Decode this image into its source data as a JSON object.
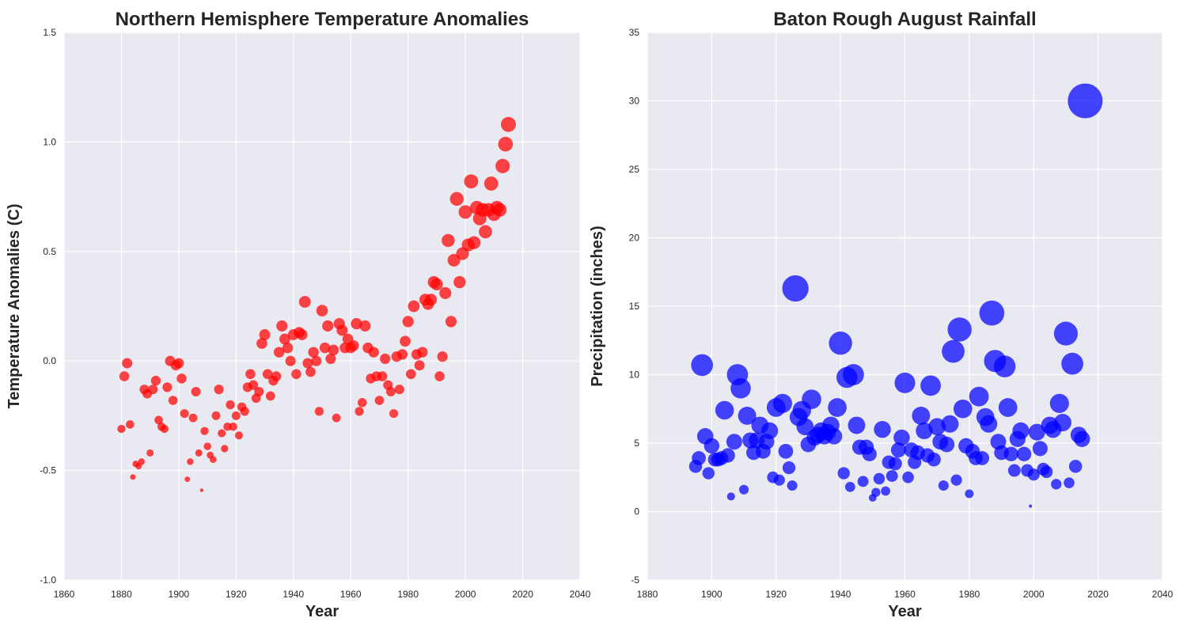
{
  "chart_data": [
    {
      "type": "scatter",
      "title": "Northern Hemisphere Temperature Anomalies",
      "xlabel": "Year",
      "ylabel": "Temperature Anomalies (C)",
      "xlim": [
        1860,
        2040
      ],
      "ylim": [
        -1.0,
        1.5
      ],
      "xticks": [
        "1860",
        "1880",
        "1900",
        "1920",
        "1940",
        "1960",
        "1980",
        "2000",
        "2020",
        "2040"
      ],
      "yticks": [
        "-1.0",
        "-0.5",
        "0.0",
        "0.5",
        "1.0",
        "1.5"
      ],
      "grid": true,
      "marker_color": "#ff0000",
      "marker_size_encodes": "y value",
      "series": [
        {
          "points": [
            [
              1880,
              -0.31
            ],
            [
              1881,
              -0.07
            ],
            [
              1882,
              -0.01
            ],
            [
              1883,
              -0.29
            ],
            [
              1884,
              -0.53
            ],
            [
              1885,
              -0.47
            ],
            [
              1886,
              -0.48
            ],
            [
              1887,
              -0.46
            ],
            [
              1888,
              -0.13
            ],
            [
              1889,
              -0.15
            ],
            [
              1890,
              -0.42
            ],
            [
              1891,
              -0.13
            ],
            [
              1892,
              -0.09
            ],
            [
              1893,
              -0.27
            ],
            [
              1894,
              -0.3
            ],
            [
              1895,
              -0.31
            ],
            [
              1896,
              -0.12
            ],
            [
              1897,
              0.0
            ],
            [
              1898,
              -0.18
            ],
            [
              1899,
              -0.02
            ],
            [
              1900,
              -0.01
            ],
            [
              1901,
              -0.08
            ],
            [
              1902,
              -0.24
            ],
            [
              1903,
              -0.54
            ],
            [
              1904,
              -0.46
            ],
            [
              1905,
              -0.26
            ],
            [
              1906,
              -0.14
            ],
            [
              1907,
              -0.42
            ],
            [
              1908,
              -0.59
            ],
            [
              1909,
              -0.32
            ],
            [
              1910,
              -0.39
            ],
            [
              1911,
              -0.43
            ],
            [
              1912,
              -0.45
            ],
            [
              1913,
              -0.25
            ],
            [
              1914,
              -0.13
            ],
            [
              1915,
              -0.33
            ],
            [
              1916,
              -0.4
            ],
            [
              1917,
              -0.3
            ],
            [
              1918,
              -0.2
            ],
            [
              1919,
              -0.3
            ],
            [
              1920,
              -0.25
            ],
            [
              1921,
              -0.34
            ],
            [
              1922,
              -0.21
            ],
            [
              1923,
              -0.23
            ],
            [
              1924,
              -0.12
            ],
            [
              1925,
              -0.06
            ],
            [
              1926,
              -0.11
            ],
            [
              1927,
              -0.17
            ],
            [
              1928,
              -0.14
            ],
            [
              1929,
              0.08
            ],
            [
              1930,
              0.12
            ],
            [
              1931,
              -0.06
            ],
            [
              1932,
              -0.16
            ],
            [
              1933,
              -0.09
            ],
            [
              1934,
              -0.07
            ],
            [
              1935,
              0.04
            ],
            [
              1936,
              0.16
            ],
            [
              1937,
              0.1
            ],
            [
              1938,
              0.06
            ],
            [
              1939,
              0.0
            ],
            [
              1940,
              0.12
            ],
            [
              1941,
              -0.06
            ],
            [
              1942,
              0.13
            ],
            [
              1943,
              0.12
            ],
            [
              1944,
              0.27
            ],
            [
              1945,
              -0.01
            ],
            [
              1946,
              -0.05
            ],
            [
              1947,
              0.04
            ],
            [
              1948,
              0.0
            ],
            [
              1949,
              -0.23
            ],
            [
              1950,
              0.23
            ],
            [
              1951,
              0.06
            ],
            [
              1952,
              0.16
            ],
            [
              1953,
              0.01
            ],
            [
              1954,
              0.05
            ],
            [
              1955,
              -0.26
            ],
            [
              1956,
              0.17
            ],
            [
              1957,
              0.14
            ],
            [
              1958,
              0.06
            ],
            [
              1959,
              0.1
            ],
            [
              1960,
              0.06
            ],
            [
              1961,
              0.07
            ],
            [
              1962,
              0.17
            ],
            [
              1963,
              -0.23
            ],
            [
              1964,
              -0.19
            ],
            [
              1965,
              0.16
            ],
            [
              1966,
              0.06
            ],
            [
              1967,
              -0.08
            ],
            [
              1968,
              0.04
            ],
            [
              1969,
              -0.07
            ],
            [
              1970,
              -0.18
            ],
            [
              1971,
              -0.07
            ],
            [
              1972,
              0.01
            ],
            [
              1973,
              -0.11
            ],
            [
              1974,
              -0.14
            ],
            [
              1975,
              -0.24
            ],
            [
              1976,
              0.02
            ],
            [
              1977,
              -0.13
            ],
            [
              1978,
              0.03
            ],
            [
              1979,
              0.09
            ],
            [
              1980,
              0.18
            ],
            [
              1981,
              -0.06
            ],
            [
              1982,
              0.25
            ],
            [
              1983,
              0.03
            ],
            [
              1984,
              -0.02
            ],
            [
              1985,
              0.04
            ],
            [
              1986,
              0.28
            ],
            [
              1987,
              0.26
            ],
            [
              1988,
              0.28
            ],
            [
              1989,
              0.36
            ],
            [
              1990,
              0.35
            ],
            [
              1991,
              -0.07
            ],
            [
              1992,
              0.02
            ],
            [
              1993,
              0.31
            ],
            [
              1994,
              0.55
            ],
            [
              1995,
              0.18
            ],
            [
              1996,
              0.46
            ],
            [
              1997,
              0.74
            ],
            [
              1998,
              0.36
            ],
            [
              1999,
              0.49
            ],
            [
              2000,
              0.68
            ],
            [
              2001,
              0.53
            ],
            [
              2002,
              0.82
            ],
            [
              2003,
              0.54
            ],
            [
              2004,
              0.7
            ],
            [
              2005,
              0.65
            ],
            [
              2006,
              0.69
            ],
            [
              2007,
              0.59
            ],
            [
              2008,
              0.69
            ],
            [
              2009,
              0.81
            ],
            [
              2010,
              0.67
            ],
            [
              2011,
              0.7
            ],
            [
              2012,
              0.69
            ],
            [
              2013,
              0.89
            ],
            [
              2014,
              0.99
            ],
            [
              2015,
              1.08
            ]
          ]
        }
      ]
    },
    {
      "type": "scatter",
      "title": "Baton Rough August Rainfall",
      "xlabel": "Year",
      "ylabel": "Precipitation (inches)",
      "xlim": [
        1880,
        2040
      ],
      "ylim": [
        -5,
        35
      ],
      "xticks": [
        "1880",
        "1900",
        "1920",
        "1940",
        "1960",
        "1980",
        "2000",
        "2020",
        "2040"
      ],
      "yticks": [
        "-5",
        "0",
        "5",
        "10",
        "15",
        "20",
        "25",
        "30",
        "35"
      ],
      "grid": true,
      "marker_color": "#0000ff",
      "marker_size_encodes": "y value",
      "series": [
        {
          "points": [
            [
              1895,
              3.3
            ],
            [
              1896,
              3.9
            ],
            [
              1897,
              10.7
            ],
            [
              1898,
              5.5
            ],
            [
              1899,
              2.8
            ],
            [
              1900,
              4.8
            ],
            [
              1901,
              3.8
            ],
            [
              1902,
              3.8
            ],
            [
              1903,
              3.9
            ],
            [
              1904,
              7.4
            ],
            [
              1905,
              4.1
            ],
            [
              1906,
              1.1
            ],
            [
              1907,
              5.1
            ],
            [
              1908,
              10.0
            ],
            [
              1909,
              9.0
            ],
            [
              1910,
              1.6
            ],
            [
              1911,
              7.0
            ],
            [
              1912,
              5.2
            ],
            [
              1913,
              4.3
            ],
            [
              1914,
              5.2
            ],
            [
              1915,
              6.3
            ],
            [
              1916,
              4.4
            ],
            [
              1917,
              5.1
            ],
            [
              1918,
              5.9
            ],
            [
              1919,
              2.5
            ],
            [
              1920,
              7.6
            ],
            [
              1921,
              2.3
            ],
            [
              1922,
              7.9
            ],
            [
              1923,
              4.4
            ],
            [
              1924,
              3.2
            ],
            [
              1925,
              1.9
            ],
            [
              1926,
              16.3
            ],
            [
              1927,
              6.9
            ],
            [
              1928,
              7.4
            ],
            [
              1929,
              6.2
            ],
            [
              1930,
              4.9
            ],
            [
              1931,
              8.2
            ],
            [
              1932,
              5.4
            ],
            [
              1933,
              5.6
            ],
            [
              1934,
              5.9
            ],
            [
              1935,
              5.5
            ],
            [
              1936,
              5.8
            ],
            [
              1937,
              6.3
            ],
            [
              1938,
              5.5
            ],
            [
              1939,
              7.6
            ],
            [
              1940,
              12.3
            ],
            [
              1941,
              2.8
            ],
            [
              1942,
              9.8
            ],
            [
              1943,
              1.8
            ],
            [
              1944,
              10.0
            ],
            [
              1945,
              6.3
            ],
            [
              1946,
              4.7
            ],
            [
              1947,
              2.2
            ],
            [
              1948,
              4.7
            ],
            [
              1949,
              4.2
            ],
            [
              1950,
              1.0
            ],
            [
              1951,
              1.4
            ],
            [
              1952,
              2.4
            ],
            [
              1953,
              6.0
            ],
            [
              1954,
              1.5
            ],
            [
              1955,
              3.6
            ],
            [
              1956,
              2.6
            ],
            [
              1957,
              3.5
            ],
            [
              1958,
              4.5
            ],
            [
              1959,
              5.4
            ],
            [
              1960,
              9.4
            ],
            [
              1961,
              2.5
            ],
            [
              1962,
              4.5
            ],
            [
              1963,
              3.6
            ],
            [
              1964,
              4.3
            ],
            [
              1965,
              7.0
            ],
            [
              1966,
              5.9
            ],
            [
              1967,
              4.1
            ],
            [
              1968,
              9.2
            ],
            [
              1969,
              3.8
            ],
            [
              1970,
              6.2
            ],
            [
              1971,
              5.1
            ],
            [
              1972,
              1.9
            ],
            [
              1973,
              4.9
            ],
            [
              1974,
              6.4
            ],
            [
              1975,
              11.7
            ],
            [
              1976,
              2.3
            ],
            [
              1977,
              13.3
            ],
            [
              1978,
              7.5
            ],
            [
              1979,
              4.8
            ],
            [
              1980,
              1.3
            ],
            [
              1981,
              4.4
            ],
            [
              1982,
              3.9
            ],
            [
              1983,
              8.4
            ],
            [
              1984,
              3.9
            ],
            [
              1985,
              6.9
            ],
            [
              1986,
              6.4
            ],
            [
              1987,
              14.5
            ],
            [
              1988,
              11.0
            ],
            [
              1989,
              5.1
            ],
            [
              1990,
              4.3
            ],
            [
              1991,
              10.6
            ],
            [
              1992,
              7.6
            ],
            [
              1993,
              4.2
            ],
            [
              1994,
              3.0
            ],
            [
              1995,
              5.3
            ],
            [
              1996,
              5.9
            ],
            [
              1997,
              4.2
            ],
            [
              1998,
              3.0
            ],
            [
              1999,
              0.4
            ],
            [
              2000,
              2.7
            ],
            [
              2001,
              5.8
            ],
            [
              2002,
              4.6
            ],
            [
              2003,
              3.1
            ],
            [
              2004,
              2.9
            ],
            [
              2005,
              6.3
            ],
            [
              2006,
              6.0
            ],
            [
              2007,
              2.0
            ],
            [
              2008,
              7.9
            ],
            [
              2009,
              6.5
            ],
            [
              2010,
              13.0
            ],
            [
              2011,
              2.1
            ],
            [
              2012,
              10.8
            ],
            [
              2013,
              3.3
            ],
            [
              2014,
              5.6
            ],
            [
              2015,
              5.3
            ],
            [
              2016,
              30.0
            ]
          ]
        }
      ]
    }
  ]
}
